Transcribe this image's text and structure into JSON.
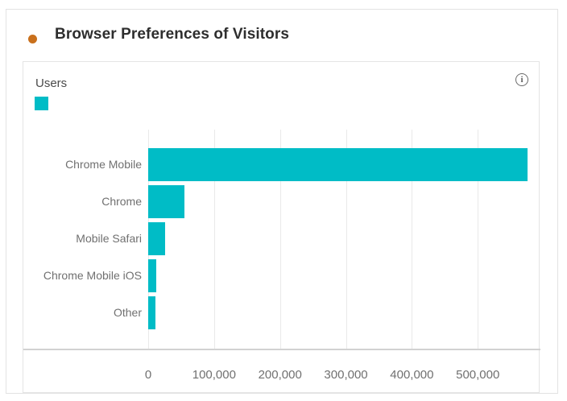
{
  "card": {
    "title": "Browser Preferences of Visitors",
    "title_dot_color": "#c9701c"
  },
  "panel": {
    "legend_label": "Users",
    "legend_swatch_color": "#00bcc6",
    "info_icon_glyph": "i"
  },
  "chart_data": {
    "type": "bar",
    "orientation": "horizontal",
    "title": "Browser Preferences of Visitors",
    "series_name": "Users",
    "categories": [
      "Chrome Mobile",
      "Chrome",
      "Mobile Safari",
      "Chrome Mobile iOS",
      "Other"
    ],
    "values": [
      575000,
      55000,
      26000,
      12500,
      11000
    ],
    "bar_color": "#00bcc6",
    "xlabel": "",
    "ylabel": "",
    "grid": true,
    "legend_position": "top-left",
    "axis": {
      "max": 595000,
      "ticks": [
        0,
        100000,
        200000,
        300000,
        400000,
        500000
      ],
      "tick_labels": [
        "0",
        "100,000",
        "200,000",
        "300,000",
        "400,000",
        "500,000"
      ]
    }
  }
}
